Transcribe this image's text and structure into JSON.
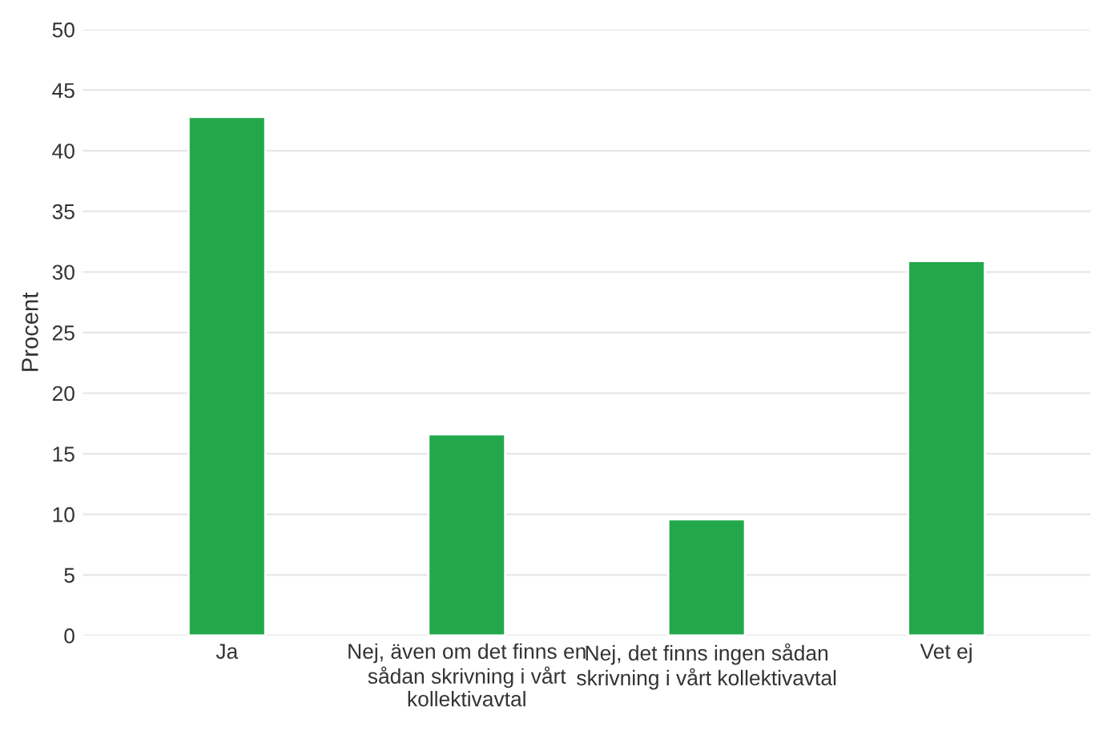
{
  "chart_data": {
    "type": "bar",
    "categories": [
      "Ja",
      "Nej, även om det finns en\nsådan skrivning i vårt\nkollektivavtal",
      "Nej, det finns ingen sådan\nskrivning i vårt kollektivavtal",
      "Vet ej"
    ],
    "values": [
      42.8,
      16.6,
      9.6,
      30.9
    ],
    "color": "#22a84b",
    "ylabel": "Procent",
    "ylim": [
      0,
      50
    ],
    "yticks": [
      0,
      5,
      10,
      15,
      20,
      25,
      30,
      35,
      40,
      45,
      50
    ],
    "grid": "y",
    "legend": false
  }
}
